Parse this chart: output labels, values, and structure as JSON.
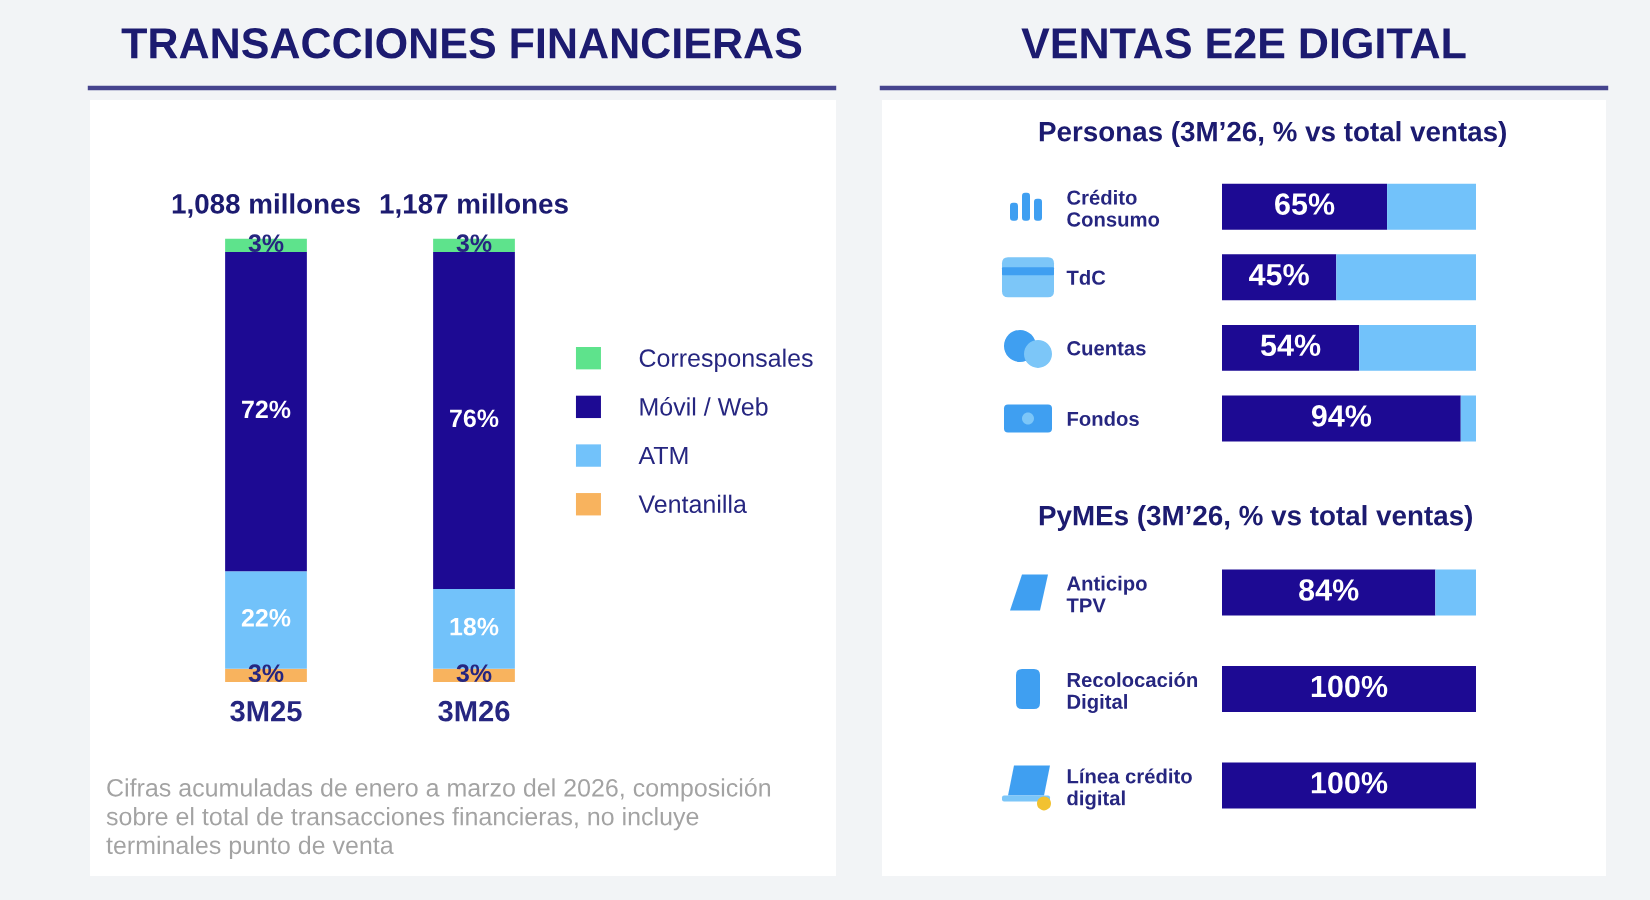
{
  "chart_data": [
    {
      "type": "bar",
      "title": "TRANSACCIONES FINANCIERAS",
      "categories": [
        "3M25",
        "3M26"
      ],
      "stacked": true,
      "legend": "right",
      "series": [
        {
          "name": "Ventanilla",
          "color": "#f8b35e",
          "values": [
            3,
            3
          ],
          "value_labels": [
            "3%",
            "3%"
          ]
        },
        {
          "name": "ATM",
          "color": "#72c2fa",
          "values": [
            22,
            18
          ],
          "value_labels": [
            "22%",
            "18%"
          ]
        },
        {
          "name": "Móvil / Web",
          "color": "#1d0a93",
          "values": [
            72,
            76
          ],
          "value_labels": [
            "72%",
            "76%"
          ]
        },
        {
          "name": "Corresponsales",
          "color": "#5ee38c",
          "values": [
            3,
            3
          ],
          "value_labels": [
            "3%",
            "3%"
          ]
        }
      ],
      "annotations": [
        {
          "text": "1,088 millones",
          "x": "3M25",
          "y": 100
        },
        {
          "text": "1,187 millones",
          "x": "3M26",
          "y": 100
        },
        "Cifras acumuladas de enero a marzo del 2026, composición\nsobre el total de transacciones financieras, no incluye\nterminales punto de venta"
      ]
    },
    {
      "type": "bar",
      "orientation": "horizontal",
      "stacked": true,
      "title": "VENTAS E2E DIGITAL",
      "subtitle": "Personas (3M’26, % vs total ventas)",
      "categories": [
        "Crédito\nConsumo",
        "TdC",
        "Cuentas",
        "Fondos"
      ],
      "series": [
        {
          "color": "#1d0a93",
          "values": [
            65,
            45,
            54,
            94
          ],
          "value_labels": [
            "65%",
            "45%",
            "54%",
            "94%"
          ]
        },
        {
          "color": "#72c2fa",
          "values": [
            35,
            55,
            46,
            6
          ]
        }
      ]
    },
    {
      "type": "bar",
      "orientation": "horizontal",
      "stacked": true,
      "subtitle": "PyMEs (3M’26, % vs total ventas)",
      "categories": [
        "Anticipo\nTPV",
        "Recolocación\nDigital",
        "Línea crédito\ndigital"
      ],
      "series": [
        {
          "color": "#1d0a93",
          "values": [
            84,
            100,
            100
          ],
          "value_labels": [
            "84%",
            "100%",
            "100%"
          ]
        },
        {
          "color": "#72c2fa",
          "values": [
            16,
            null,
            null
          ]
        }
      ]
    }
  ]
}
